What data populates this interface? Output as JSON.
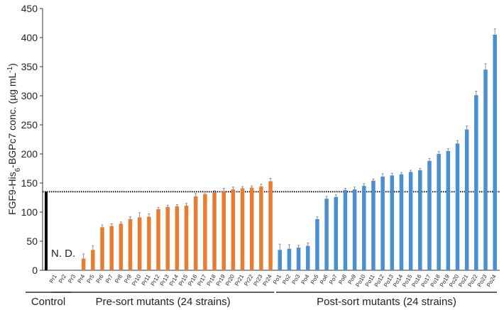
{
  "chart_data": {
    "type": "bar",
    "ylabel_parts": [
      "FGF9-His",
      "6",
      "-BGPc7 conc. (µg mL",
      "-1",
      ")"
    ],
    "ylim": [
      0,
      450
    ],
    "yticks": [
      0,
      50,
      100,
      150,
      200,
      250,
      300,
      350,
      400,
      450
    ],
    "reference_line": 135,
    "annotation": "N. D.",
    "groups": [
      {
        "label": "Control",
        "color": "#000000",
        "categories": [
          null
        ],
        "values": [
          135
        ],
        "errors": [
          null
        ]
      },
      {
        "label": "Pre-sort mutants (24 strains)",
        "color": "#e87d31",
        "categories": [
          "Pr1",
          "Pr2",
          "Pr3",
          "Pr4",
          "Pr5",
          "Pr6",
          "Pr7",
          "Pr8",
          "Pr9",
          "Pr10",
          "Pr11",
          "Pr12",
          "Pr13",
          "Pr14",
          "Pr15",
          "Pr16",
          "Pr17",
          "Pr18",
          "Pr19",
          "Pr20",
          "Pr21",
          "Pr22",
          "Pr23",
          "Pr24"
        ],
        "values": [
          null,
          null,
          null,
          20,
          35,
          74,
          76,
          80,
          88,
          91,
          92,
          105,
          109,
          110,
          111,
          127,
          131,
          134,
          136,
          139,
          141,
          142,
          144,
          153
        ],
        "errors": [
          null,
          null,
          null,
          8,
          7,
          4,
          4,
          3,
          4,
          8,
          5,
          3,
          3,
          3,
          4,
          5,
          4,
          3,
          5,
          4,
          3,
          3,
          4,
          5
        ]
      },
      {
        "label": "Post-sort mutants (24 strains)",
        "color": "#4a8fd1",
        "categories": [
          "Po1",
          "Po2",
          "Po3",
          "Po4",
          "Po5",
          "Po6",
          "Po7",
          "Po8",
          "Po9",
          "Po10",
          "Po11",
          "Po12",
          "Po13",
          "Po14",
          "Po15",
          "Po16",
          "Po17",
          "Po18",
          "Po19",
          "Po20",
          "Po21",
          "Po22",
          "Po23",
          "Po24"
        ],
        "values": [
          35,
          37,
          39,
          42,
          88,
          123,
          126,
          138,
          139,
          145,
          154,
          161,
          163,
          165,
          169,
          172,
          188,
          200,
          205,
          218,
          242,
          301,
          345,
          405
        ],
        "errors": [
          10,
          7,
          4,
          5,
          4,
          4,
          4,
          3,
          4,
          4,
          3,
          5,
          4,
          3,
          3,
          3,
          4,
          4,
          4,
          5,
          6,
          7,
          10,
          10
        ]
      }
    ]
  }
}
